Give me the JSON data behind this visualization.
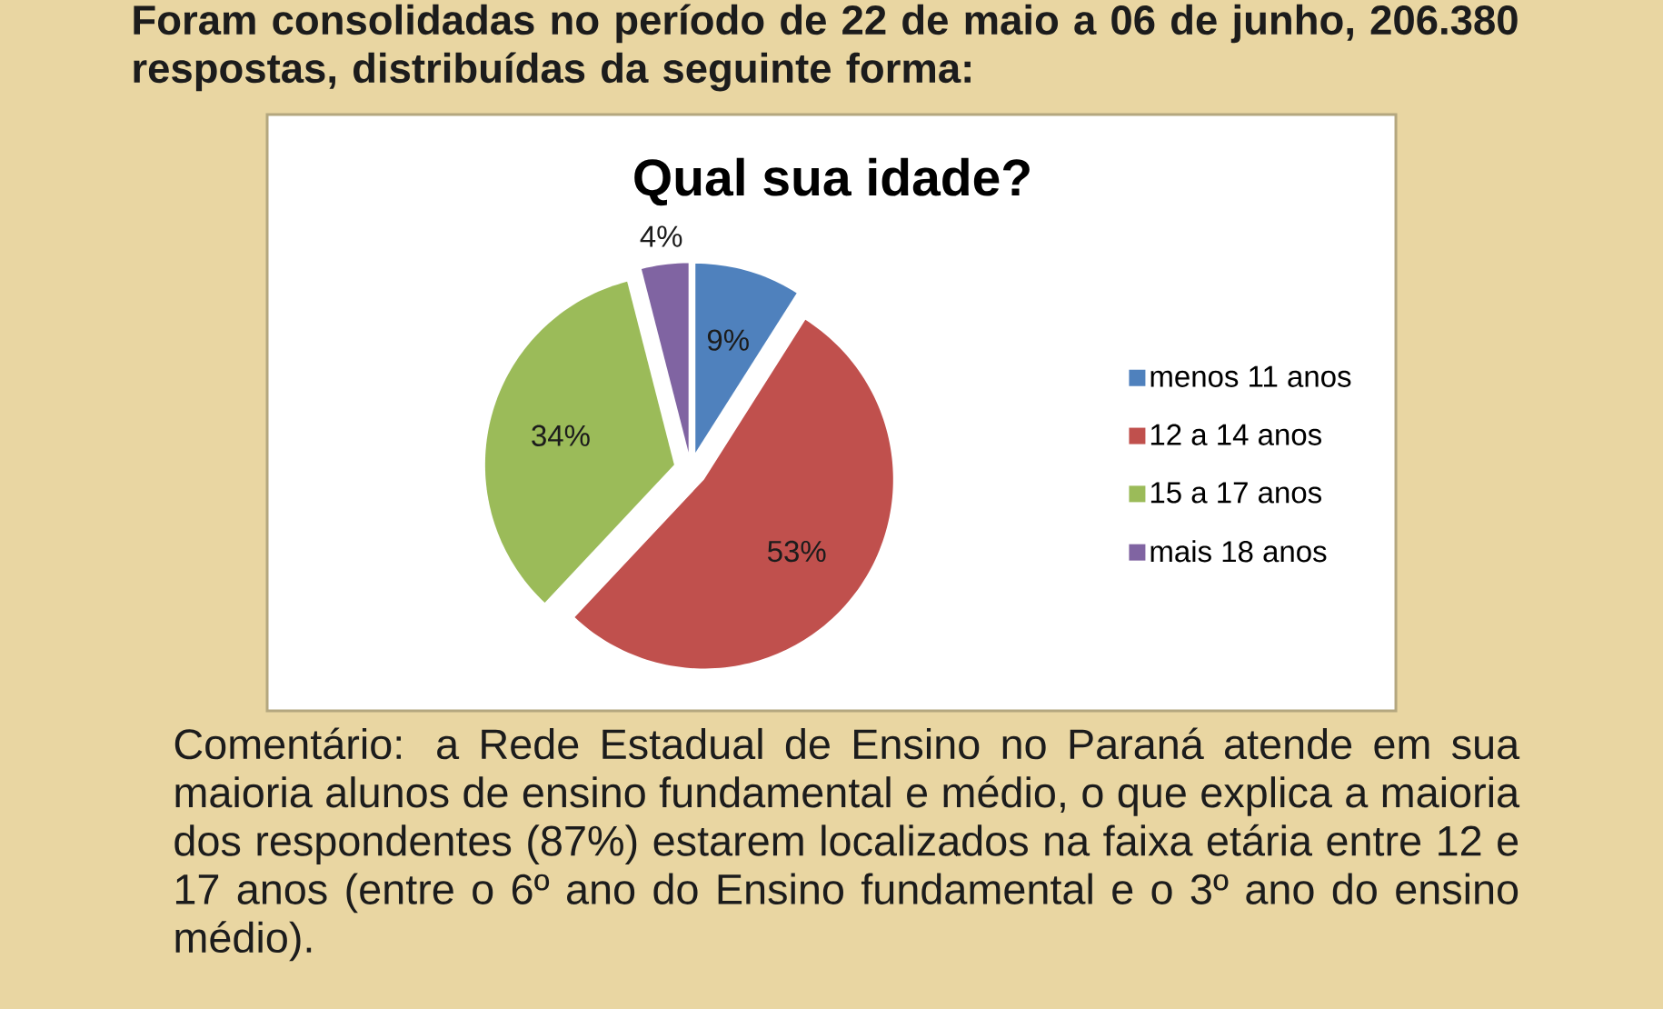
{
  "chart_data": {
    "type": "pie",
    "title": "Qual sua idade?",
    "categories": [
      "menos 11 anos",
      "12 a 14 anos",
      "15 a 17 anos",
      "mais 18 anos"
    ],
    "values": [
      9,
      53,
      34,
      4
    ],
    "colors": [
      "#4f81bd",
      "#c0504d",
      "#9bbb59",
      "#8064a2"
    ],
    "value_labels": [
      "9%",
      "53%",
      "34%",
      "4%"
    ],
    "legend": "right",
    "annotations": [
      "Foram consolidadas no período de 22 de maio a 06 de junho, 206.380 respostas, distribuídas da seguinte forma:",
      "Comentário: a Rede Estadual de Ensino no Paraná atende em sua maioria alunos de ensino fundamental e médio, o que explica a maioria dos respondentes (87%) estarem localizados na faixa etária entre 12 e 17 anos (entre o 6º ano do Ensino fundamental e o 3º ano do ensino médio)."
    ]
  }
}
